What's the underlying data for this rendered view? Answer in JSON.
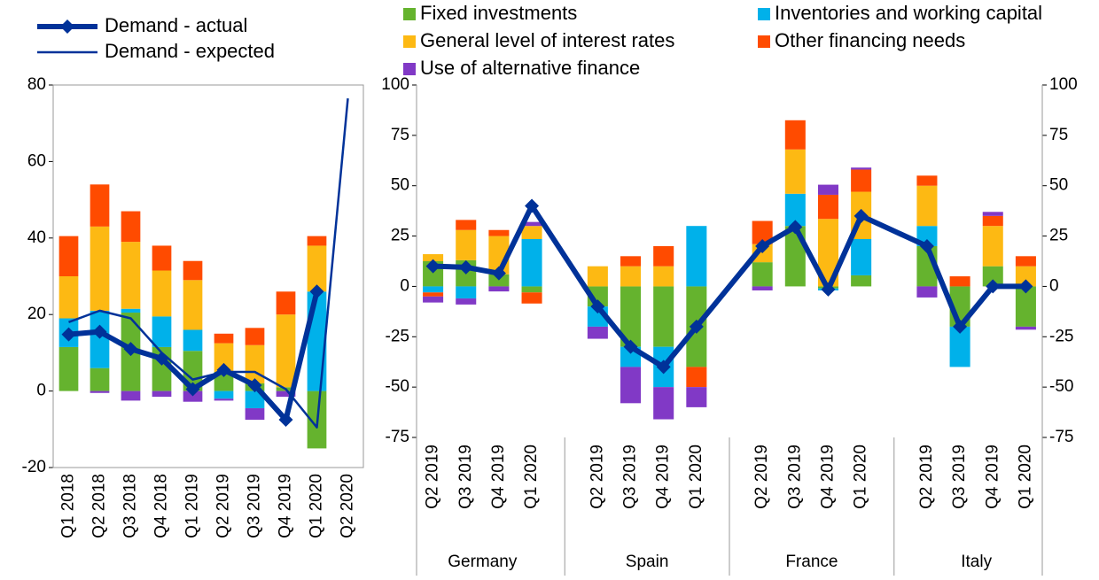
{
  "chart_data": [
    {
      "type": "bar",
      "stacked": true,
      "categories": [
        "Q1 2018",
        "Q2 2018",
        "Q3 2018",
        "Q4 2018",
        "Q1 2019",
        "Q2 2019",
        "Q3 2019",
        "Q4 2019",
        "Q1 2020",
        "Q2 2020"
      ],
      "series": [
        {
          "name": "Fixed investments",
          "type": "bar",
          "color": "#65b32e",
          "values": [
            11.5,
            6,
            20.5,
            11.5,
            10.5,
            5,
            2,
            1,
            -15,
            null
          ]
        },
        {
          "name": "Inventories and working capital",
          "type": "bar",
          "color": "#00b1ea",
          "values": [
            7.5,
            15,
            1,
            8,
            5.5,
            -2,
            -4.5,
            0,
            26,
            null
          ]
        },
        {
          "name": "General level of interest rates",
          "type": "bar",
          "color": "#fdb913",
          "values": [
            11,
            22,
            17.5,
            12,
            13,
            7.5,
            10,
            19,
            12,
            null
          ]
        },
        {
          "name": "Other financing needs",
          "type": "bar",
          "color": "#ff4b00",
          "values": [
            10.5,
            11,
            8,
            6.5,
            5,
            2.5,
            4.5,
            6,
            2.5,
            null
          ]
        },
        {
          "name": "Use of alternative finance",
          "type": "bar",
          "color": "#8139c6",
          "values": [
            0,
            -0.5,
            -2.5,
            -1.5,
            -2.8,
            -0.5,
            -3,
            -1.5,
            0,
            null
          ]
        },
        {
          "name": "Demand - actual",
          "type": "line",
          "marker": "diamond",
          "color": "#003299",
          "values": [
            14.8,
            15.5,
            11,
            8.5,
            0.5,
            5.5,
            1.5,
            -7.5,
            26,
            null
          ]
        },
        {
          "name": "Demand - expected",
          "type": "line",
          "color": "#003299",
          "values": [
            18,
            21,
            19,
            10,
            3,
            5,
            5,
            0.5,
            -9.5,
            76.5
          ]
        }
      ],
      "ylim": [
        -20,
        80
      ],
      "yticks": [
        -20,
        0,
        20,
        40,
        60,
        80
      ]
    },
    {
      "type": "bar",
      "stacked": true,
      "categories": [
        "Q2 2019",
        "Q3 2019",
        "Q4 2019",
        "Q1 2020",
        "Q2 2019",
        "Q3 2019",
        "Q4 2019",
        "Q1 2020",
        "Q2 2019",
        "Q3 2019",
        "Q4 2019",
        "Q1 2020",
        "Q2 2019",
        "Q3 2019",
        "Q4 2019",
        "Q1 2020"
      ],
      "category_groups": [
        "Germany",
        "Spain",
        "France",
        "Italy"
      ],
      "series": [
        {
          "name": "Fixed investments",
          "type": "bar",
          "color": "#65b32e",
          "values": [
            12.5,
            13,
            6,
            -3,
            -10,
            -30,
            -30,
            -40,
            12,
            30,
            -1,
            5.5,
            20,
            -20,
            10,
            -20
          ]
        },
        {
          "name": "Inventories and working capital",
          "type": "bar",
          "color": "#00b1ea",
          "values": [
            -3,
            -6,
            0,
            23.5,
            -10,
            -10,
            -20,
            30,
            0,
            16,
            -1,
            18,
            10,
            -20,
            0,
            0
          ]
        },
        {
          "name": "General level of interest rates",
          "type": "bar",
          "color": "#fdb913",
          "values": [
            3.5,
            15,
            19,
            6.5,
            10,
            10,
            10,
            0,
            9,
            22,
            33.5,
            23.5,
            20,
            0,
            20,
            10
          ]
        },
        {
          "name": "Other financing needs",
          "type": "bar",
          "color": "#ff4b00",
          "values": [
            -2,
            5,
            3,
            -5.5,
            0,
            5,
            10,
            -10,
            11.5,
            14.5,
            12,
            11,
            5,
            5,
            5,
            5
          ]
        },
        {
          "name": "Use of alternative finance",
          "type": "bar",
          "color": "#8139c6",
          "values": [
            -3,
            -3,
            -2.5,
            2,
            -6,
            -18,
            -16,
            -10,
            -2,
            0,
            5,
            1,
            -5.5,
            0,
            2,
            -1.5
          ]
        },
        {
          "name": "Demand - actual",
          "type": "line",
          "marker": "diamond",
          "color": "#003299",
          "values": [
            10,
            9.5,
            6.5,
            40,
            -10,
            -30,
            -40,
            -20,
            20,
            29.5,
            -1.5,
            35,
            20,
            -20,
            0,
            0
          ]
        }
      ],
      "ylim": [
        -75,
        100
      ],
      "yticks": [
        -75,
        -50,
        -25,
        0,
        25,
        50,
        75,
        100
      ]
    }
  ]
}
